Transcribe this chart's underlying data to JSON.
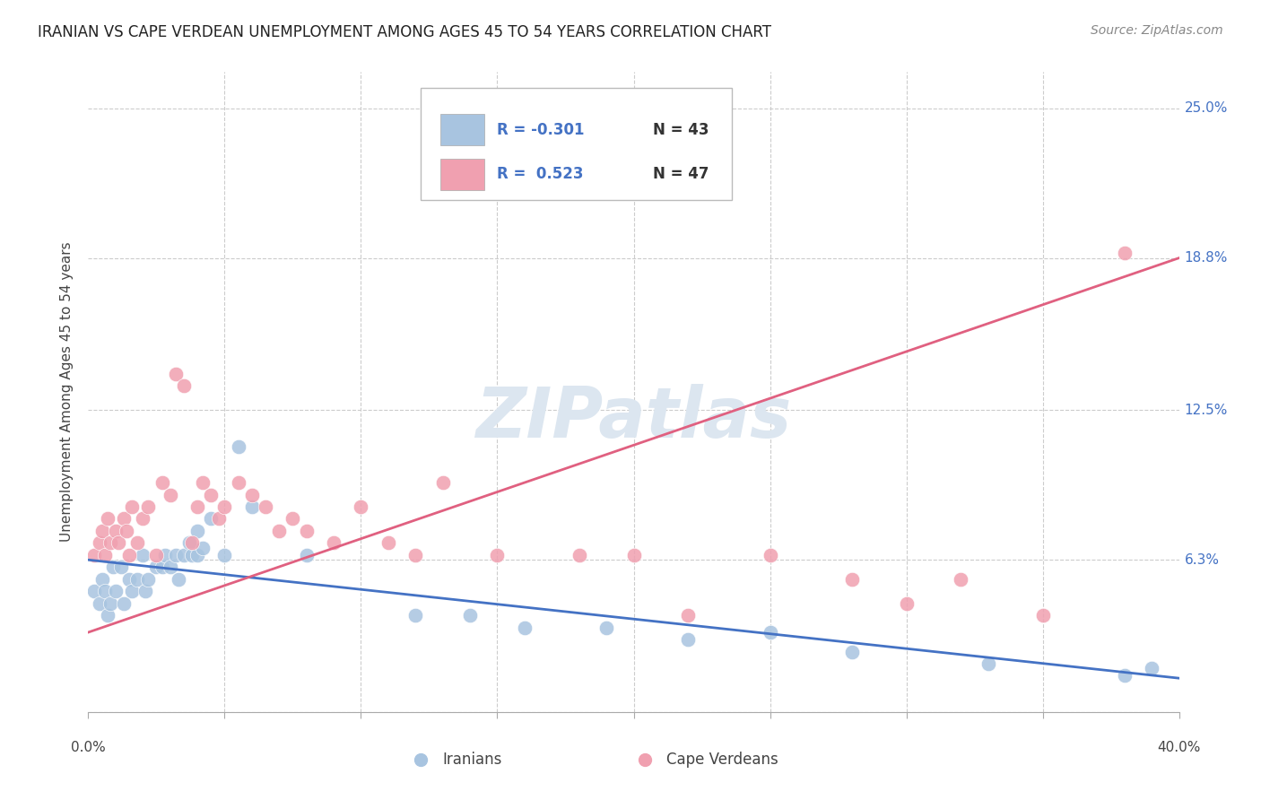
{
  "title": "IRANIAN VS CAPE VERDEAN UNEMPLOYMENT AMONG AGES 45 TO 54 YEARS CORRELATION CHART",
  "source": "Source: ZipAtlas.com",
  "ylabel": "Unemployment Among Ages 45 to 54 years",
  "xlim": [
    0.0,
    0.4
  ],
  "ylim": [
    0.0,
    0.265
  ],
  "yticks": [
    0.0,
    0.063,
    0.125,
    0.188,
    0.25
  ],
  "ytick_labels": [
    "",
    "6.3%",
    "12.5%",
    "18.8%",
    "25.0%"
  ],
  "xticks": [
    0.0,
    0.05,
    0.1,
    0.15,
    0.2,
    0.25,
    0.3,
    0.35,
    0.4
  ],
  "grid_color": "#cccccc",
  "background_color": "#ffffff",
  "iranians_color": "#a8c4e0",
  "cape_verdeans_color": "#f0a0b0",
  "iranians_line_color": "#4472c4",
  "cape_verdeans_line_color": "#e06080",
  "watermark_color": "#dce6f0",
  "legend_iranians_R": "-0.301",
  "legend_iranians_N": "43",
  "legend_cape_verdeans_R": "0.523",
  "legend_cape_verdeans_N": "47",
  "iranians_x": [
    0.002,
    0.004,
    0.005,
    0.006,
    0.007,
    0.008,
    0.009,
    0.01,
    0.012,
    0.013,
    0.015,
    0.016,
    0.018,
    0.02,
    0.021,
    0.022,
    0.025,
    0.027,
    0.028,
    0.03,
    0.032,
    0.033,
    0.035,
    0.037,
    0.038,
    0.04,
    0.04,
    0.042,
    0.045,
    0.05,
    0.055,
    0.06,
    0.08,
    0.12,
    0.14,
    0.16,
    0.19,
    0.22,
    0.25,
    0.28,
    0.33,
    0.38,
    0.39
  ],
  "iranians_y": [
    0.05,
    0.045,
    0.055,
    0.05,
    0.04,
    0.045,
    0.06,
    0.05,
    0.06,
    0.045,
    0.055,
    0.05,
    0.055,
    0.065,
    0.05,
    0.055,
    0.06,
    0.06,
    0.065,
    0.06,
    0.065,
    0.055,
    0.065,
    0.07,
    0.065,
    0.065,
    0.075,
    0.068,
    0.08,
    0.065,
    0.11,
    0.085,
    0.065,
    0.04,
    0.04,
    0.035,
    0.035,
    0.03,
    0.033,
    0.025,
    0.02,
    0.015,
    0.018
  ],
  "cape_verdeans_x": [
    0.002,
    0.004,
    0.005,
    0.006,
    0.007,
    0.008,
    0.01,
    0.011,
    0.013,
    0.014,
    0.015,
    0.016,
    0.018,
    0.02,
    0.022,
    0.025,
    0.027,
    0.03,
    0.032,
    0.035,
    0.038,
    0.04,
    0.042,
    0.045,
    0.048,
    0.05,
    0.055,
    0.06,
    0.065,
    0.07,
    0.075,
    0.08,
    0.09,
    0.1,
    0.11,
    0.12,
    0.13,
    0.15,
    0.18,
    0.2,
    0.22,
    0.25,
    0.28,
    0.3,
    0.32,
    0.35,
    0.38
  ],
  "cape_verdeans_y": [
    0.065,
    0.07,
    0.075,
    0.065,
    0.08,
    0.07,
    0.075,
    0.07,
    0.08,
    0.075,
    0.065,
    0.085,
    0.07,
    0.08,
    0.085,
    0.065,
    0.095,
    0.09,
    0.14,
    0.135,
    0.07,
    0.085,
    0.095,
    0.09,
    0.08,
    0.085,
    0.095,
    0.09,
    0.085,
    0.075,
    0.08,
    0.075,
    0.07,
    0.085,
    0.07,
    0.065,
    0.095,
    0.065,
    0.065,
    0.065,
    0.04,
    0.065,
    0.055,
    0.045,
    0.055,
    0.04,
    0.19
  ],
  "iranians_trend_x": [
    0.0,
    0.4
  ],
  "iranians_trend_y": [
    0.063,
    0.014
  ],
  "cape_verdeans_trend_x": [
    0.0,
    0.4
  ],
  "cape_verdeans_trend_y": [
    0.033,
    0.188
  ]
}
